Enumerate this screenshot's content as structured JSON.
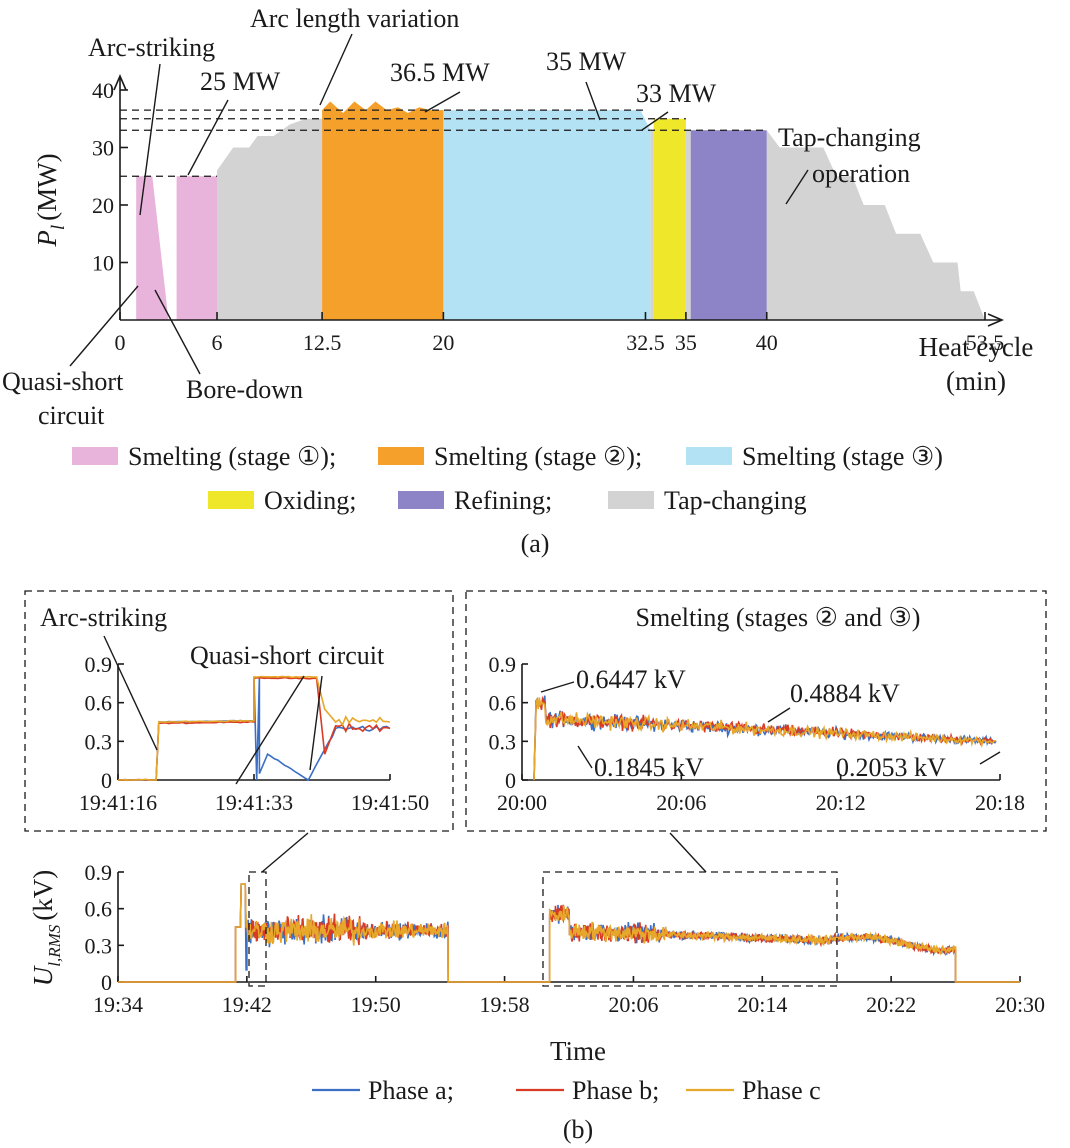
{
  "panel_a": {
    "caption": "(a)",
    "y_axis": {
      "symbol": "P",
      "subscript": "l",
      "unit": "(MW)",
      "ticks": [
        10,
        20,
        30,
        40
      ]
    },
    "x_axis": {
      "label_line1": "Heat cycle",
      "label_line2": "(min)",
      "ticks": [
        "0",
        "6",
        "12.5",
        "20",
        "32.5",
        "35",
        "40",
        "53.5"
      ]
    },
    "annotations": {
      "arc_striking": "Arc-striking",
      "p25": "25 MW",
      "arc_length": "Arc length variation",
      "p365": "36.5 MW",
      "p35": "35 MW",
      "p33": "33 MW",
      "tap_line1": "Tap-changing",
      "tap_line2": "operation",
      "quasi_line1": "Quasi-short",
      "quasi_line2": "circuit",
      "bore_down": "Bore-down"
    },
    "legend": [
      {
        "label": "Smelting (stage ①);",
        "color": "#e8b4dc"
      },
      {
        "label": "Smelting (stage ②);",
        "color": "#f5a02a"
      },
      {
        "label": "Smelting (stage ③)",
        "color": "#b3e2f5"
      },
      {
        "label": "Oxiding;",
        "color": "#efe82a"
      },
      {
        "label": "Refining;",
        "color": "#8c84c6"
      },
      {
        "label": "Tap-changing",
        "color": "#d3d3d3"
      }
    ]
  },
  "panel_b": {
    "caption": "(b)",
    "left_inset": {
      "title": "Arc-striking",
      "annotation": "Quasi-short circuit",
      "x_ticks": [
        "19:41:16",
        "19:41:33",
        "19:41:50"
      ],
      "y_ticks": [
        "0",
        "0.3",
        "0.6",
        "0.9"
      ]
    },
    "right_inset": {
      "title": "Smelting (stages ② and ③)",
      "annotations": [
        "0.6447 kV",
        "0.4884 kV",
        "0.1845 kV",
        "0.2053 kV"
      ],
      "x_ticks": [
        "20:00",
        "20:06",
        "20:12",
        "20:18"
      ],
      "y_ticks": [
        "0",
        "0.3",
        "0.6",
        "0.9"
      ]
    },
    "main": {
      "y_axis": {
        "symbol": "U",
        "subscript": "l,RMS",
        "unit": "(kV)"
      },
      "y_ticks": [
        "0",
        "0.3",
        "0.6",
        "0.9"
      ],
      "x_ticks": [
        "19:34",
        "19:42",
        "19:50",
        "19:58",
        "20:06",
        "20:14",
        "20:22",
        "20:30"
      ],
      "x_label": "Time"
    },
    "legend": [
      {
        "label": "Phase a;",
        "color": "#3a6fc4"
      },
      {
        "label": "Phase b;",
        "color": "#d83a24"
      },
      {
        "label": "Phase c",
        "color": "#e6a72a"
      }
    ]
  },
  "chart_data": [
    {
      "type": "area",
      "x_range_min": [
        0,
        53.5
      ],
      "y_range_MW": [
        0,
        40
      ],
      "x_ticks": [
        0,
        6,
        12.5,
        20,
        32.5,
        35,
        40,
        53.5
      ],
      "y_ticks": [
        10,
        20,
        30,
        40
      ],
      "reference_levels_MW": [
        25,
        33,
        35,
        36.5
      ],
      "series": [
        {
          "name": "Smelting (stage ①)",
          "color": "#e8b4dc",
          "points": [
            [
              1,
              0
            ],
            [
              1,
              25
            ],
            [
              2,
              25
            ],
            [
              3,
              0
            ],
            [
              3.5,
              0
            ],
            [
              3.5,
              25
            ],
            [
              6,
              25
            ],
            [
              6,
              0
            ]
          ]
        },
        {
          "name": "Smelting (stage ②)",
          "color": "#f5a02a",
          "points": [
            [
              12.5,
              0
            ],
            [
              12.5,
              36.5
            ],
            [
              13,
              38
            ],
            [
              13.8,
              36
            ],
            [
              14.5,
              38
            ],
            [
              15.2,
              36.5
            ],
            [
              15.8,
              38
            ],
            [
              16.5,
              36.5
            ],
            [
              17.2,
              37
            ],
            [
              17.8,
              36
            ],
            [
              18.5,
              37
            ],
            [
              19.2,
              36.5
            ],
            [
              20,
              36.5
            ],
            [
              20,
              0
            ]
          ]
        },
        {
          "name": "Smelting (stage ③)",
          "color": "#b3e2f5",
          "points": [
            [
              20,
              0
            ],
            [
              20,
              36.5
            ],
            [
              32.2,
              36.5
            ],
            [
              32.8,
              33
            ],
            [
              32.8,
              0
            ]
          ]
        },
        {
          "name": "Oxiding",
          "color": "#efe82a",
          "points": [
            [
              33,
              0
            ],
            [
              33,
              35
            ],
            [
              35,
              35
            ],
            [
              35,
              0
            ]
          ]
        },
        {
          "name": "Refining",
          "color": "#8c84c6",
          "points": [
            [
              35.3,
              0
            ],
            [
              35.3,
              33
            ],
            [
              40,
              33
            ],
            [
              40,
              0
            ]
          ]
        },
        {
          "name": "Tap-changing",
          "color": "#d3d3d3",
          "points": [
            [
              6,
              0
            ],
            [
              6,
              26
            ],
            [
              7,
              30
            ],
            [
              8,
              30
            ],
            [
              8.5,
              32
            ],
            [
              9.5,
              32
            ],
            [
              10.5,
              34
            ],
            [
              11.5,
              35
            ],
            [
              12.5,
              35
            ],
            [
              12.5,
              0
            ],
            [
              32.8,
              0
            ],
            [
              32.8,
              33
            ],
            [
              33,
              33
            ],
            [
              33,
              0
            ],
            [
              35,
              0
            ],
            [
              35,
              33
            ],
            [
              35.3,
              33
            ],
            [
              35.3,
              0
            ],
            [
              40,
              0
            ],
            [
              40,
              33
            ],
            [
              40.8,
              30
            ],
            [
              43.5,
              30
            ],
            [
              44.3,
              25
            ],
            [
              45.3,
              25
            ],
            [
              46,
              20
            ],
            [
              47.3,
              20
            ],
            [
              48,
              15
            ],
            [
              49.5,
              15
            ],
            [
              50.3,
              10
            ],
            [
              51.8,
              10
            ],
            [
              52,
              5
            ],
            [
              52.8,
              5
            ],
            [
              53.5,
              0
            ]
          ]
        }
      ]
    },
    {
      "type": "line",
      "series_names": [
        "Phase a",
        "Phase b",
        "Phase c"
      ],
      "y_range_kV": [
        0,
        0.9
      ],
      "left_inset": {
        "x_range": [
          "19:41:16",
          "19:41:50"
        ],
        "points_kV": [
          {
            "name": "Phase a",
            "values": [
              [
                0,
                0
              ],
              [
                0.14,
                0
              ],
              [
                0.15,
                0.45
              ],
              [
                0.5,
                0.46
              ],
              [
                0.5,
                0.47
              ],
              [
                0.5,
                0.8
              ],
              [
                0.51,
                0.0
              ],
              [
                0.52,
                0.8
              ],
              [
                0.52,
                0.05
              ],
              [
                0.55,
                0.2
              ],
              [
                0.7,
                0.0
              ],
              [
                0.8,
                0.4
              ],
              [
                1.0,
                0.4
              ]
            ]
          },
          {
            "name": "Phase b",
            "values": [
              [
                0,
                0
              ],
              [
                0.14,
                0
              ],
              [
                0.15,
                0.44
              ],
              [
                0.5,
                0.45
              ],
              [
                0.5,
                0.79
              ],
              [
                0.73,
                0.79
              ],
              [
                0.76,
                0.2
              ],
              [
                0.8,
                0.42
              ],
              [
                1.0,
                0.4
              ]
            ]
          },
          {
            "name": "Phase c",
            "values": [
              [
                0,
                0
              ],
              [
                0.14,
                0
              ],
              [
                0.15,
                0.45
              ],
              [
                0.5,
                0.46
              ],
              [
                0.5,
                0.8
              ],
              [
                0.73,
                0.8
              ],
              [
                0.76,
                0.55
              ],
              [
                0.8,
                0.45
              ],
              [
                1.0,
                0.45
              ]
            ]
          }
        ],
        "annotations": [
          "Arc-striking",
          "Quasi-short circuit"
        ]
      },
      "right_inset": {
        "x_range": [
          "20:00",
          "20:18"
        ],
        "labelled_values_kV": [
          0.6447,
          0.4884,
          0.1845,
          0.2053
        ]
      },
      "main": {
        "x_range": [
          "19:34",
          "20:30"
        ],
        "active_intervals": [
          [
            "19:41:16",
            "19:54:30"
          ],
          [
            "20:00:30",
            "20:26:00"
          ]
        ],
        "typical_level_kV": [
          0.4,
          0.35
        ]
      }
    }
  ]
}
